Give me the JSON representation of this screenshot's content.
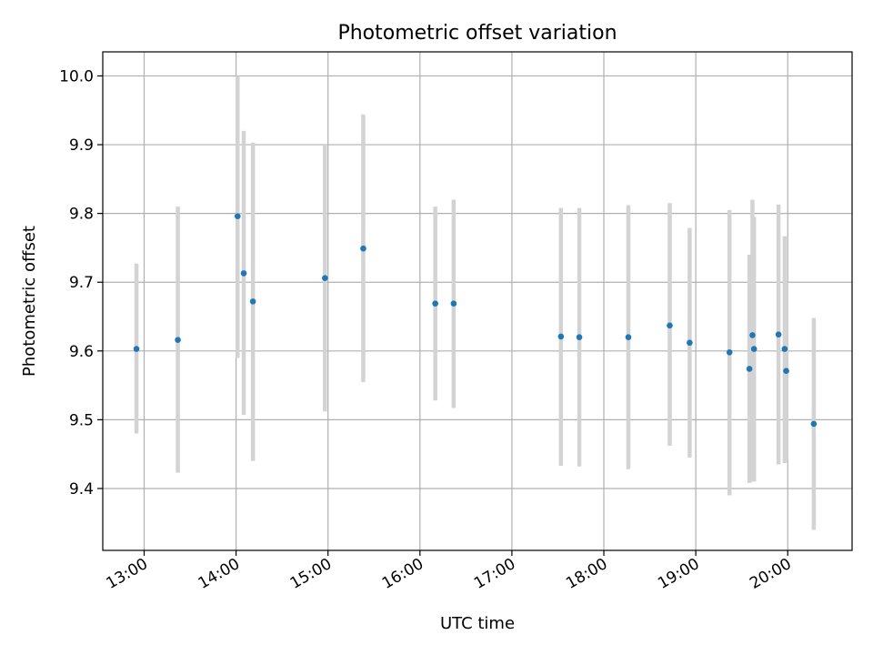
{
  "chart_data": {
    "type": "scatter",
    "title": "Photometric offset variation",
    "xlabel": "UTC time",
    "ylabel": "Photometric offset",
    "grid": true,
    "xlim": [
      "12:33",
      "20:42"
    ],
    "ylim": [
      9.31,
      10.035
    ],
    "xticks": [
      "13:00",
      "14:00",
      "15:00",
      "16:00",
      "17:00",
      "18:00",
      "19:00",
      "20:00"
    ],
    "yticks": [
      "9.4",
      "9.5",
      "9.6",
      "9.7",
      "9.8",
      "9.9",
      "10.0"
    ],
    "colors": {
      "point": "#1f77b4",
      "errorbar": "#d3d3d3",
      "grid": "#b0b0b0"
    },
    "points": [
      {
        "x": "12:55",
        "y": 9.603,
        "ylow": 9.48,
        "yhigh": 9.727
      },
      {
        "x": "13:22",
        "y": 9.616,
        "ylow": 9.423,
        "yhigh": 9.81
      },
      {
        "x": "14:01",
        "y": 9.796,
        "ylow": 9.59,
        "yhigh": 10.0
      },
      {
        "x": "14:05",
        "y": 9.713,
        "ylow": 9.507,
        "yhigh": 9.92
      },
      {
        "x": "14:11",
        "y": 9.672,
        "ylow": 9.44,
        "yhigh": 9.903
      },
      {
        "x": "14:58",
        "y": 9.706,
        "ylow": 9.512,
        "yhigh": 9.9
      },
      {
        "x": "15:23",
        "y": 9.749,
        "ylow": 9.555,
        "yhigh": 9.944
      },
      {
        "x": "16:10",
        "y": 9.669,
        "ylow": 9.528,
        "yhigh": 9.81
      },
      {
        "x": "16:22",
        "y": 9.669,
        "ylow": 9.517,
        "yhigh": 9.82
      },
      {
        "x": "17:32",
        "y": 9.621,
        "ylow": 9.433,
        "yhigh": 9.808
      },
      {
        "x": "17:44",
        "y": 9.62,
        "ylow": 9.432,
        "yhigh": 9.808
      },
      {
        "x": "18:16",
        "y": 9.62,
        "ylow": 9.428,
        "yhigh": 9.812
      },
      {
        "x": "18:43",
        "y": 9.637,
        "ylow": 9.462,
        "yhigh": 9.815
      },
      {
        "x": "18:56",
        "y": 9.612,
        "ylow": 9.445,
        "yhigh": 9.779
      },
      {
        "x": "19:22",
        "y": 9.598,
        "ylow": 9.39,
        "yhigh": 9.805
      },
      {
        "x": "19:35",
        "y": 9.574,
        "ylow": 9.408,
        "yhigh": 9.74
      },
      {
        "x": "19:37",
        "y": 9.623,
        "ylow": 9.41,
        "yhigh": 9.82
      },
      {
        "x": "19:38",
        "y": 9.603,
        "ylow": 9.41,
        "yhigh": 9.795
      },
      {
        "x": "19:54",
        "y": 9.624,
        "ylow": 9.435,
        "yhigh": 9.813
      },
      {
        "x": "19:58",
        "y": 9.603,
        "ylow": 9.437,
        "yhigh": 9.767
      },
      {
        "x": "19:59",
        "y": 9.571,
        "ylow": 9.44,
        "yhigh": 9.7
      },
      {
        "x": "20:17",
        "y": 9.494,
        "ylow": 9.34,
        "yhigh": 9.648
      }
    ]
  }
}
